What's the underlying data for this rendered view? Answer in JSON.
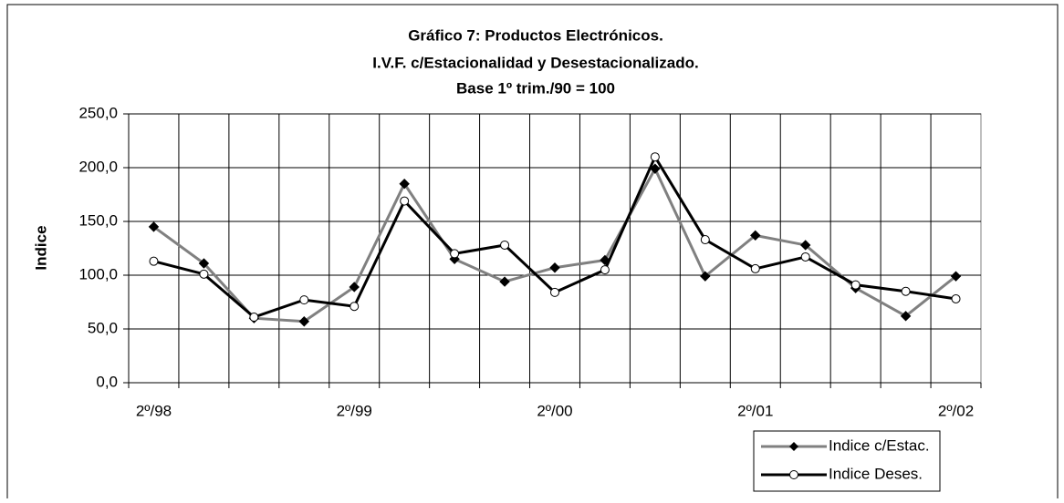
{
  "chart_data": {
    "type": "line",
    "title": [
      "Gráfico 7: Productos Electrónicos.",
      "I.V.F. c/Estacionalidad y Desestacionalizado.",
      "Base 1º trim./90 = 100"
    ],
    "y_label": "Indice",
    "categories": [
      "2º/98",
      null,
      null,
      null,
      "2º/99",
      null,
      null,
      null,
      "2º/00",
      null,
      null,
      null,
      "2º/01",
      null,
      null,
      null,
      "2º/02"
    ],
    "series": [
      {
        "name": "Indice c/Estac.",
        "color": "#808080",
        "marker": "diamond",
        "values": [
          145,
          111,
          60,
          57,
          89,
          185,
          115,
          94,
          107,
          114,
          199,
          99,
          137,
          128,
          88,
          62,
          99
        ]
      },
      {
        "name": "Indice Deses.",
        "color": "#000000",
        "marker": "circle",
        "values": [
          113,
          101,
          61,
          77,
          71,
          169,
          120,
          128,
          84,
          105,
          210,
          133,
          106,
          117,
          91,
          85,
          78
        ]
      }
    ],
    "ylim": [
      0,
      250
    ],
    "yticks": [
      {
        "value": 0,
        "label": "0,0"
      },
      {
        "value": 50,
        "label": "50,0"
      },
      {
        "value": 100,
        "label": "100,0"
      },
      {
        "value": 150,
        "label": "150,0"
      },
      {
        "value": 200,
        "label": "200,0"
      },
      {
        "value": 250,
        "label": "250,0"
      }
    ],
    "grid": true,
    "legend": "bottom-right"
  }
}
